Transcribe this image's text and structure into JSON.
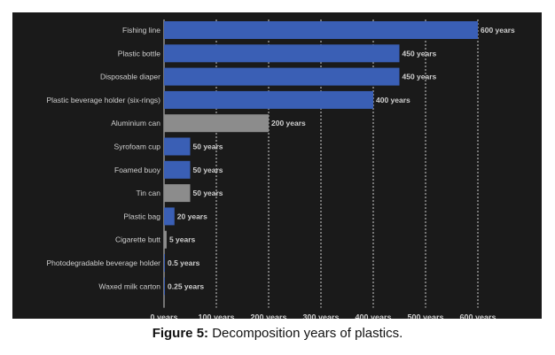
{
  "caption": {
    "label": "Figure 5:",
    "text": " Decomposition years of plastics."
  },
  "colors": {
    "background": "#1a1a1a",
    "plastic_bar": "#3a5fb5",
    "other_bar": "#8c8c8c",
    "grid": "#cfcfcf",
    "text": "#cfcfcf"
  },
  "chart_data": {
    "type": "bar",
    "orientation": "horizontal",
    "title": "",
    "xlabel": "",
    "ylabel": "",
    "xlim": [
      0,
      600
    ],
    "x_ticks": [
      0,
      100,
      200,
      300,
      400,
      500,
      600
    ],
    "x_tick_labels": [
      "0 years",
      "100 years",
      "200 years",
      "300 years",
      "400 years",
      "500 years",
      "600 years"
    ],
    "grid": "vertical dashed",
    "categories": [
      "Fishing line",
      "Plastic bottle",
      "Disposable diaper",
      "Plastic beverage holder (six-rings)",
      "Aluminium can",
      "Syrofoam cup",
      "Foamed buoy",
      "Tin can",
      "Plastic bag",
      "Cigarette butt",
      "Photodegradable beverage holder",
      "Waxed milk carton"
    ],
    "values": [
      600,
      450,
      450,
      400,
      200,
      50,
      50,
      50,
      20,
      5,
      0.5,
      0.25
    ],
    "value_labels": [
      "600 years",
      "450 years",
      "450 years",
      "400 years",
      "200 years",
      "50 years",
      "50 years",
      "50 years",
      "20 years",
      "5 years",
      "0.5 years",
      "0.25 years"
    ],
    "bar_colors": [
      "#3a5fb5",
      "#3a5fb5",
      "#3a5fb5",
      "#3a5fb5",
      "#8c8c8c",
      "#3a5fb5",
      "#3a5fb5",
      "#8c8c8c",
      "#3a5fb5",
      "#8c8c8c",
      "#3a5fb5",
      "#3a5fb5"
    ]
  }
}
